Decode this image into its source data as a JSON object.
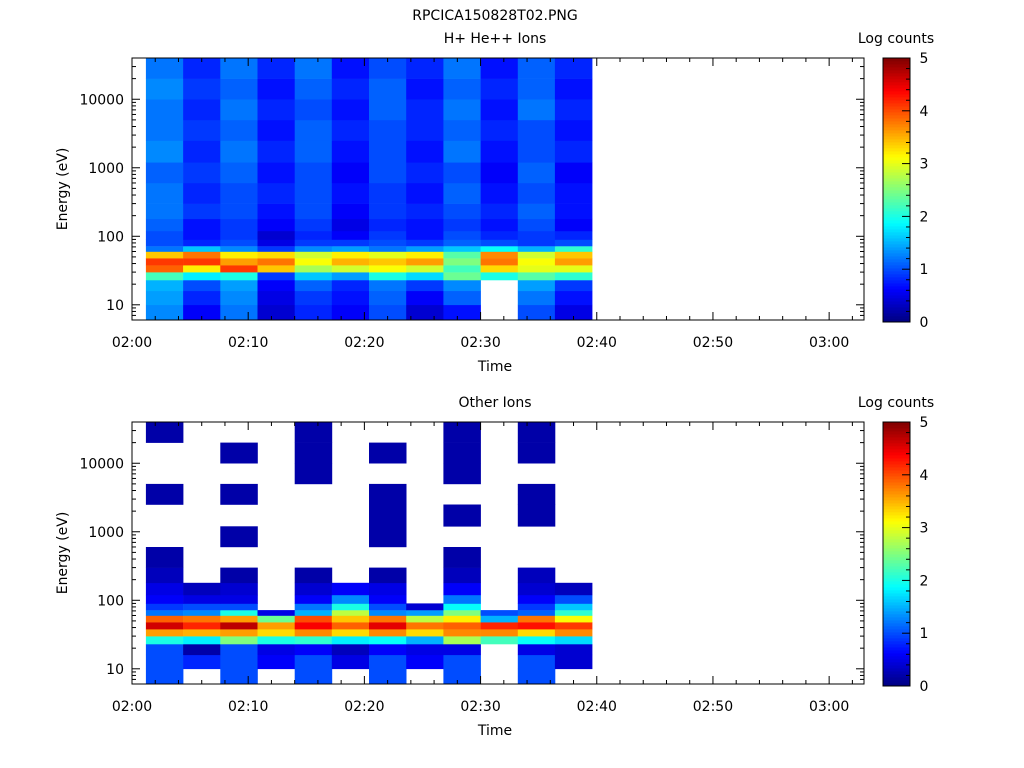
{
  "figure": {
    "title": "RPCICA150828T02.PNG"
  },
  "colors": {
    "colormap": [
      "#00007f",
      "#0000ff",
      "#007fff",
      "#00ffff",
      "#7fff7f",
      "#ffff00",
      "#ff7f00",
      "#ff0000",
      "#7f0000"
    ]
  },
  "chart_data": [
    {
      "type": "heatmap",
      "title": "H+ He++ Ions",
      "xlabel": "Time",
      "ylabel": "Energy (eV)",
      "colorbar_label": "Log counts",
      "x_ticks": [
        "02:00",
        "02:10",
        "02:20",
        "02:30",
        "02:40",
        "02:50",
        "03:00"
      ],
      "y_ticks": [
        "10",
        "100",
        "1000",
        "10000"
      ],
      "colorbar_ticks": [
        "0",
        "1",
        "2",
        "3",
        "4",
        "5"
      ],
      "x_range_minutes": [
        0,
        63
      ],
      "y_range_eV": [
        6,
        40000
      ],
      "y_scale": "log",
      "colorbar_range": [
        0,
        5
      ],
      "time_bins_minutes": [
        1.2,
        4.4,
        7.6,
        10.8,
        14.0,
        17.2,
        20.4,
        23.6,
        26.8,
        30.0,
        33.2,
        36.4,
        39.6
      ],
      "energy_bins_eV": [
        6,
        10,
        16,
        23,
        30,
        38,
        48,
        60,
        72,
        90,
        120,
        180,
        300,
        600,
        1200,
        2500,
        5000,
        10000,
        20000,
        40000
      ],
      "values": [
        [
          1.3,
          0.6,
          1.2,
          0.4,
          0.8,
          0.6,
          1.0,
          0.4,
          0.7,
          null,
          1.0,
          0.5
        ],
        [
          1.4,
          0.8,
          1.3,
          0.5,
          0.9,
          0.7,
          1.1,
          0.6,
          1.1,
          null,
          1.2,
          0.7
        ],
        [
          1.5,
          1.0,
          1.4,
          0.6,
          1.1,
          0.8,
          1.2,
          0.9,
          1.3,
          null,
          1.4,
          0.9
        ],
        [
          2.2,
          1.8,
          2.0,
          0.9,
          1.6,
          1.4,
          2.0,
          1.7,
          2.4,
          2.0,
          2.3,
          2.1
        ],
        [
          3.9,
          3.2,
          4.1,
          3.4,
          2.7,
          2.9,
          3.1,
          2.9,
          2.2,
          3.3,
          3.0,
          3.0
        ],
        [
          4.1,
          4.1,
          3.6,
          3.8,
          3.1,
          3.5,
          3.4,
          3.6,
          2.5,
          3.8,
          3.1,
          3.6
        ],
        [
          3.4,
          3.8,
          3.2,
          3.3,
          2.9,
          3.2,
          3.0,
          3.2,
          2.3,
          3.7,
          2.9,
          3.4
        ],
        [
          1.2,
          1.6,
          1.3,
          0.9,
          1.3,
          1.4,
          1.2,
          1.4,
          1.6,
          1.9,
          1.5,
          2.1
        ],
        [
          1.0,
          0.8,
          1.0,
          0.5,
          0.9,
          0.9,
          1.0,
          0.9,
          1.1,
          1.0,
          0.9,
          1.0
        ],
        [
          1.0,
          0.7,
          0.9,
          0.4,
          0.8,
          0.6,
          0.9,
          0.7,
          1.0,
          0.8,
          0.9,
          0.8
        ],
        [
          1.1,
          0.7,
          0.9,
          0.6,
          0.9,
          0.5,
          0.8,
          0.7,
          0.9,
          0.7,
          1.0,
          0.6
        ],
        [
          1.2,
          0.9,
          1.0,
          0.7,
          1.0,
          0.6,
          0.9,
          0.8,
          1.0,
          0.8,
          1.1,
          0.7
        ],
        [
          1.2,
          0.8,
          1.0,
          0.8,
          1.0,
          0.7,
          0.9,
          0.7,
          1.1,
          0.7,
          1.0,
          0.7
        ],
        [
          1.1,
          0.9,
          1.1,
          0.7,
          1.0,
          0.6,
          1.0,
          0.8,
          1.0,
          0.6,
          1.1,
          0.6
        ],
        [
          1.3,
          0.8,
          1.2,
          0.8,
          1.1,
          0.7,
          1.0,
          0.7,
          1.2,
          0.7,
          1.0,
          0.8
        ],
        [
          1.2,
          0.9,
          1.1,
          0.7,
          1.1,
          0.8,
          1.0,
          0.8,
          1.1,
          0.8,
          1.0,
          0.7
        ],
        [
          1.2,
          0.8,
          1.2,
          0.8,
          1.0,
          0.7,
          1.1,
          0.8,
          1.2,
          0.7,
          1.2,
          0.8
        ],
        [
          1.3,
          0.9,
          1.1,
          0.7,
          1.1,
          0.8,
          1.1,
          0.7,
          1.1,
          0.8,
          1.1,
          0.7
        ],
        [
          1.2,
          0.8,
          1.2,
          0.8,
          1.2,
          0.7,
          1.0,
          0.8,
          1.2,
          0.7,
          1.1,
          0.8
        ]
      ]
    },
    {
      "type": "heatmap",
      "title": "Other Ions",
      "xlabel": "Time",
      "ylabel": "Energy (eV)",
      "colorbar_label": "Log counts",
      "x_ticks": [
        "02:00",
        "02:10",
        "02:20",
        "02:30",
        "02:40",
        "02:50",
        "03:00"
      ],
      "y_ticks": [
        "10",
        "100",
        "1000",
        "10000"
      ],
      "colorbar_ticks": [
        "0",
        "1",
        "2",
        "3",
        "4",
        "5"
      ],
      "x_range_minutes": [
        0,
        63
      ],
      "y_range_eV": [
        6,
        40000
      ],
      "y_scale": "log",
      "colorbar_range": [
        0,
        5
      ],
      "time_bins_minutes": [
        1.2,
        4.4,
        7.6,
        10.8,
        14.0,
        17.2,
        20.4,
        23.6,
        26.8,
        30.0,
        33.2,
        36.4,
        39.6
      ],
      "energy_bins_eV": [
        6,
        10,
        16,
        23,
        30,
        38,
        48,
        60,
        72,
        90,
        120,
        180,
        300,
        600,
        1200,
        2500,
        5000,
        10000,
        20000,
        40000
      ],
      "values": [
        [
          1.0,
          null,
          1.0,
          null,
          1.0,
          null,
          1.0,
          null,
          1.0,
          null,
          1.0,
          null
        ],
        [
          1.0,
          0.8,
          1.0,
          0.6,
          1.0,
          0.5,
          1.0,
          0.6,
          1.0,
          null,
          1.0,
          0.4
        ],
        [
          1.0,
          0.2,
          1.0,
          0.5,
          0.6,
          0.3,
          0.6,
          0.5,
          0.5,
          null,
          0.5,
          0.4
        ],
        [
          2.0,
          1.8,
          2.5,
          2.0,
          2.1,
          1.8,
          1.9,
          1.5,
          2.7,
          2.2,
          1.9,
          1.7
        ],
        [
          3.6,
          3.5,
          3.6,
          3.3,
          3.7,
          3.3,
          3.7,
          3.3,
          3.7,
          3.7,
          3.3,
          3.7
        ],
        [
          4.6,
          4.2,
          4.7,
          3.6,
          4.4,
          3.9,
          4.5,
          3.8,
          3.9,
          4.2,
          4.3,
          4.1
        ],
        [
          3.9,
          3.8,
          3.6,
          2.4,
          4.0,
          3.4,
          3.8,
          2.8,
          3.2,
          1.5,
          3.8,
          3.1
        ],
        [
          1.2,
          1.3,
          2.0,
          0.5,
          1.5,
          2.8,
          1.3,
          1.4,
          2.5,
          1.0,
          1.1,
          2.1
        ],
        [
          0.9,
          1.0,
          1.0,
          null,
          1.2,
          2.0,
          1.0,
          0.4,
          1.9,
          null,
          0.9,
          1.6
        ],
        [
          0.6,
          0.5,
          0.5,
          null,
          0.6,
          1.3,
          0.6,
          null,
          1.2,
          null,
          0.6,
          1.0
        ],
        [
          0.5,
          0.3,
          0.4,
          null,
          0.4,
          0.6,
          0.5,
          null,
          0.6,
          null,
          0.4,
          0.3
        ],
        [
          0.3,
          null,
          0.2,
          null,
          0.2,
          null,
          0.2,
          null,
          0.3,
          null,
          0.3,
          null
        ],
        [
          0.2,
          null,
          null,
          null,
          null,
          null,
          null,
          null,
          0.2,
          null,
          null,
          null
        ],
        [
          null,
          null,
          0.2,
          null,
          null,
          null,
          0.2,
          null,
          null,
          null,
          null,
          null
        ],
        [
          null,
          null,
          null,
          null,
          null,
          null,
          0.2,
          null,
          0.2,
          null,
          0.2,
          null
        ],
        [
          0.2,
          null,
          0.2,
          null,
          null,
          null,
          0.2,
          null,
          null,
          null,
          0.2,
          null
        ],
        [
          null,
          null,
          null,
          null,
          0.2,
          null,
          null,
          null,
          0.2,
          null,
          null,
          null
        ],
        [
          null,
          null,
          0.2,
          null,
          0.2,
          null,
          0.2,
          null,
          0.2,
          null,
          0.2,
          null
        ],
        [
          0.2,
          null,
          null,
          null,
          0.2,
          null,
          null,
          null,
          0.2,
          null,
          0.2,
          null
        ]
      ]
    }
  ]
}
